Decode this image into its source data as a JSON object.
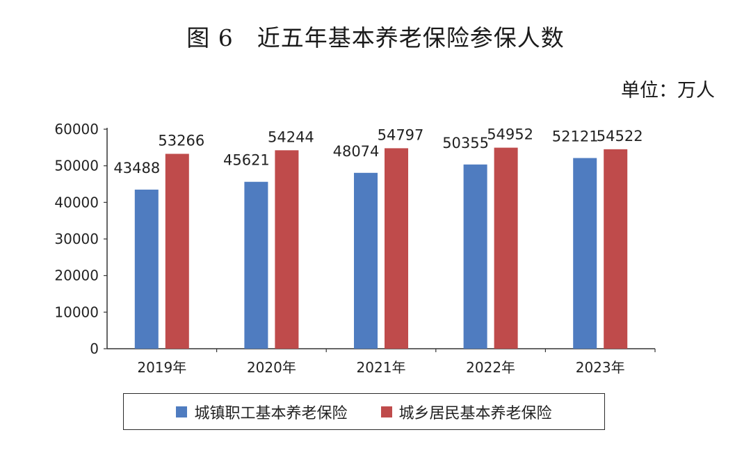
{
  "title": "图 6　近五年基本养老保险参保人数",
  "unit": "单位：万人",
  "colors": {
    "series1": "#4f7cc0",
    "series2": "#bf4b4b"
  },
  "chart_data": {
    "type": "bar",
    "categories": [
      "2019年",
      "2020年",
      "2021年",
      "2022年",
      "2023年"
    ],
    "series": [
      {
        "name": "城镇职工基本养老保险",
        "values": [
          43488,
          45621,
          48074,
          50355,
          52121
        ]
      },
      {
        "name": "城乡居民基本养老保险",
        "values": [
          53266,
          54244,
          54797,
          54952,
          54522
        ]
      }
    ],
    "ylim": [
      0,
      60000
    ],
    "yticks": [
      0,
      10000,
      20000,
      30000,
      40000,
      50000,
      60000
    ],
    "grid": false,
    "legend": "bottom"
  }
}
